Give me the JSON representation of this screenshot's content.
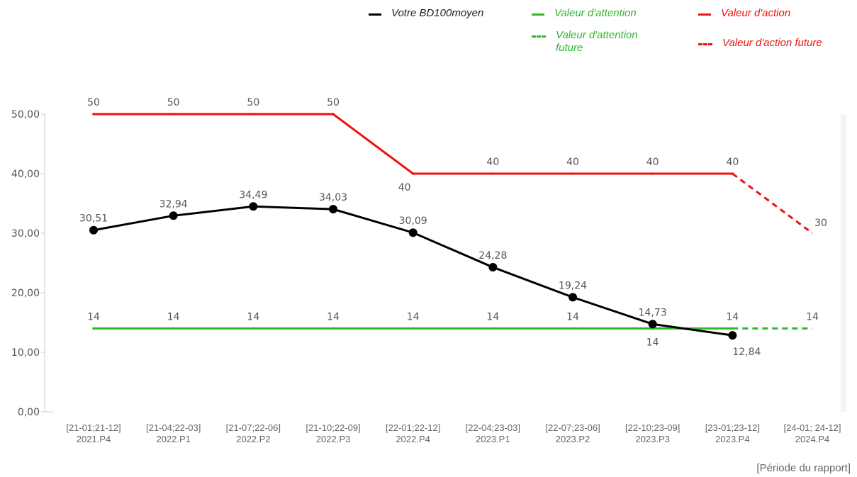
{
  "chart_data": {
    "type": "line",
    "categories": [
      [
        "[21-01;21-12]",
        "2021.P4"
      ],
      [
        "[21-04;22-03]",
        "2022.P1"
      ],
      [
        "[21-07;22-06]",
        "2022.P2"
      ],
      [
        "[21-10;22-09]",
        "2022.P3"
      ],
      [
        "[22-01;22-12]",
        "2022.P4"
      ],
      [
        "[22-04;23-03]",
        "2023.P1"
      ],
      [
        "[22-07;23-06]",
        "2023.P2"
      ],
      [
        "[22-10;23-09]",
        "2023.P3"
      ],
      [
        "[23-01;23-12]",
        "2023.P4"
      ],
      [
        "[24-01; 24-12]",
        "2024.P4"
      ]
    ],
    "series": [
      {
        "name": "Votre BD100moyen",
        "color": "#000000",
        "dash": false,
        "markers": true,
        "values": [
          30.51,
          32.94,
          34.49,
          34.03,
          30.09,
          24.28,
          19.24,
          14.73,
          12.84,
          null
        ],
        "value_labels": [
          "30,51",
          "32,94",
          "34,49",
          "34,03",
          "30,09",
          "24,28",
          "19,24",
          "14,73",
          "12,84",
          null
        ]
      },
      {
        "name": "Valeur d'attention",
        "color": "#2db82d",
        "dash": false,
        "markers": false,
        "values": [
          14,
          14,
          14,
          14,
          14,
          14,
          14,
          14,
          14,
          null
        ]
      },
      {
        "name": "Valeur d'action",
        "color": "#ee1111",
        "dash": false,
        "markers": false,
        "values": [
          50,
          50,
          50,
          50,
          40,
          40,
          40,
          40,
          40,
          null
        ]
      },
      {
        "name": "Valeur d'attention future",
        "color": "#2db82d",
        "dash": true,
        "markers": false,
        "values": [
          null,
          null,
          null,
          null,
          null,
          null,
          null,
          null,
          14,
          14
        ]
      },
      {
        "name": "Valeur d'action future",
        "color": "#ee1111",
        "dash": true,
        "markers": false,
        "values": [
          null,
          null,
          null,
          null,
          null,
          null,
          null,
          null,
          40,
          30
        ]
      }
    ],
    "ylim": [
      0,
      50
    ],
    "yticks": [
      {
        "value": 0,
        "label": "0,00"
      },
      {
        "value": 10,
        "label": "10,00"
      },
      {
        "value": 20,
        "label": "20,00"
      },
      {
        "value": 30,
        "label": "30,00"
      },
      {
        "value": 40,
        "label": "40,00"
      },
      {
        "value": 50,
        "label": "50,00"
      }
    ],
    "xlabel": "[Période du rapport]"
  }
}
